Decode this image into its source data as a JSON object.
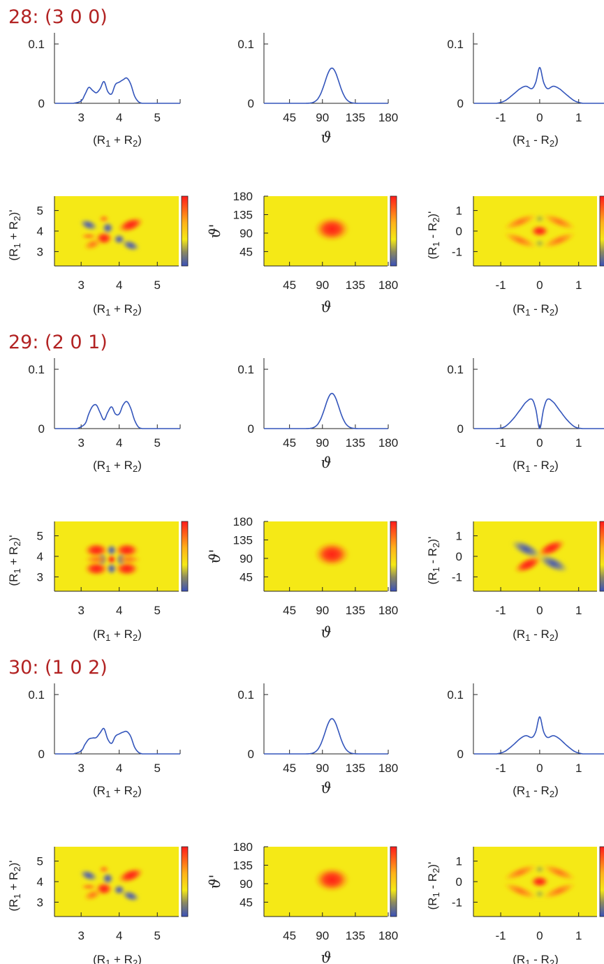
{
  "colors": {
    "title": "#b22222",
    "curve": "#3355bb",
    "background": "#f5e916"
  },
  "chart_data": {
    "type": "line_and_heatmap_grid",
    "axis_labels": {
      "sum": [
        "(R",
        "1",
        " + R",
        "2",
        ")"
      ],
      "sum_prime": [
        "(R",
        "1",
        " + R",
        "2",
        ")'"
      ],
      "diff": [
        "(R",
        "1",
        " - R",
        "2",
        ")"
      ],
      "diff_prime": [
        "(R",
        "1",
        " - R",
        "2",
        ")'"
      ],
      "theta": "ϑ",
      "theta_prime": "ϑ'"
    },
    "ticks": {
      "sum_x": [
        "3",
        "4",
        "5"
      ],
      "theta_x": [
        "45",
        "90",
        "135",
        "180"
      ],
      "diff_x": [
        "-1",
        "0",
        "1"
      ],
      "y_density": [
        "0.1",
        "0"
      ],
      "sum_y": [
        "5",
        "4",
        "3"
      ],
      "theta_y": [
        "180",
        "135",
        "90",
        "45"
      ],
      "diff_y": [
        "1",
        "0",
        "-1"
      ]
    },
    "ranges": {
      "sum": [
        2.3,
        5.6
      ],
      "theta": [
        10,
        180
      ],
      "diff": [
        -1.7,
        1.65
      ],
      "density": [
        0,
        0.12
      ]
    },
    "colorbar": [
      "#ff1b1b",
      "#ffd41a",
      "#f5e916",
      "#4257b8"
    ],
    "blocks": [
      {
        "title": "28:  (3 0 0)",
        "sum_density": {
          "x": [
            2.8,
            3.0,
            3.1,
            3.2,
            3.3,
            3.4,
            3.5,
            3.6,
            3.7,
            3.8,
            3.9,
            4.0,
            4.1,
            4.2,
            4.3,
            4.4,
            4.5,
            4.6
          ],
          "y": [
            0,
            0.004,
            0.015,
            0.027,
            0.022,
            0.018,
            0.025,
            0.037,
            0.02,
            0.016,
            0.032,
            0.036,
            0.04,
            0.043,
            0.033,
            0.013,
            0.003,
            0
          ]
        },
        "theta_density": {
          "peak": 103,
          "width": 9.5,
          "height": 0.06
        },
        "diff_density": {
          "x": [
            -1.1,
            -0.9,
            -0.7,
            -0.5,
            -0.35,
            -0.2,
            -0.1,
            0,
            0.1,
            0.2,
            0.35,
            0.5,
            0.7,
            0.9,
            1.1
          ],
          "y": [
            0,
            0.004,
            0.014,
            0.025,
            0.029,
            0.025,
            0.036,
            0.061,
            0.036,
            0.025,
            0.029,
            0.025,
            0.014,
            0.004,
            0
          ]
        }
      },
      {
        "title": "29:  (2 0 1)",
        "sum_density": {
          "x": [
            2.9,
            3.1,
            3.2,
            3.3,
            3.4,
            3.5,
            3.6,
            3.7,
            3.8,
            3.9,
            4.0,
            4.1,
            4.2,
            4.3,
            4.4,
            4.5,
            4.6
          ],
          "y": [
            0,
            0.008,
            0.025,
            0.038,
            0.04,
            0.027,
            0.015,
            0.028,
            0.037,
            0.025,
            0.025,
            0.04,
            0.046,
            0.035,
            0.015,
            0.003,
            0
          ]
        },
        "theta_density": {
          "peak": 103,
          "width": 9.5,
          "height": 0.06
        },
        "diff_density": {
          "x": [
            -1.1,
            -0.9,
            -0.7,
            -0.5,
            -0.35,
            -0.2,
            -0.1,
            0,
            0.1,
            0.2,
            0.35,
            0.5,
            0.7,
            0.9,
            1.1
          ],
          "y": [
            0,
            0.003,
            0.015,
            0.032,
            0.045,
            0.05,
            0.033,
            0,
            0.033,
            0.05,
            0.045,
            0.032,
            0.015,
            0.003,
            0
          ]
        }
      },
      {
        "title": "30:  (1 0 2)",
        "sum_density": {
          "x": [
            2.8,
            3.0,
            3.1,
            3.2,
            3.3,
            3.4,
            3.5,
            3.6,
            3.7,
            3.8,
            3.9,
            4.0,
            4.1,
            4.2,
            4.3,
            4.4,
            4.5,
            4.6
          ],
          "y": [
            0,
            0.005,
            0.016,
            0.025,
            0.027,
            0.028,
            0.036,
            0.043,
            0.025,
            0.018,
            0.03,
            0.034,
            0.037,
            0.038,
            0.03,
            0.012,
            0.003,
            0
          ]
        },
        "theta_density": {
          "peak": 103,
          "width": 9.5,
          "height": 0.06
        },
        "diff_density": {
          "x": [
            -1.1,
            -0.9,
            -0.7,
            -0.5,
            -0.35,
            -0.2,
            -0.1,
            0,
            0.1,
            0.2,
            0.35,
            0.5,
            0.7,
            0.9,
            1.1
          ],
          "y": [
            0,
            0.004,
            0.014,
            0.026,
            0.031,
            0.028,
            0.038,
            0.063,
            0.038,
            0.028,
            0.031,
            0.026,
            0.014,
            0.004,
            0
          ]
        }
      }
    ]
  }
}
